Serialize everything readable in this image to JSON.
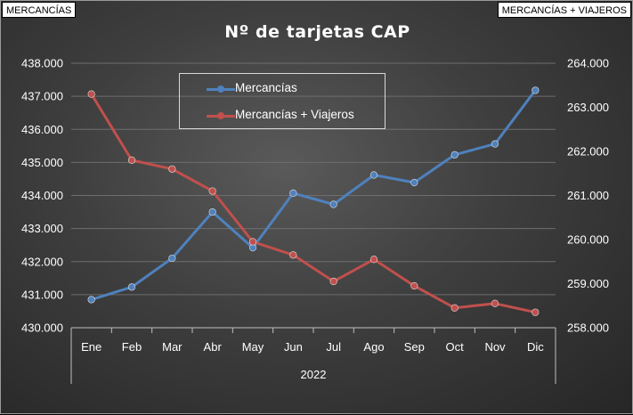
{
  "tags": {
    "left": "MERCANCÍAS",
    "right": "MERCANCÍAS + VIAJEROS"
  },
  "chart_data": {
    "type": "line",
    "title": "Nº de tarjetas  CAP",
    "categories": [
      "Ene",
      "Feb",
      "Mar",
      "Abr",
      "May",
      "Jun",
      "Jul",
      "Ago",
      "Sep",
      "Oct",
      "Nov",
      "Dic"
    ],
    "category_group": "2022",
    "series": [
      {
        "name": "Mercancías",
        "axis": "left",
        "color": "#4f81bd",
        "values": [
          430850,
          431230,
          432100,
          433500,
          432420,
          434070,
          433730,
          434620,
          434390,
          435230,
          435560,
          437180
        ]
      },
      {
        "name": "Mercancías + Viajeros",
        "axis": "right",
        "color": "#c0504d",
        "values": [
          263300,
          261800,
          261600,
          261100,
          259950,
          259650,
          259050,
          259550,
          258950,
          258450,
          258550,
          258350
        ]
      }
    ],
    "y_left": {
      "min": 430000,
      "max": 438000,
      "step": 1000,
      "tick_labels": [
        "430.000",
        "431.000",
        "432.000",
        "433.000",
        "434.000",
        "435.000",
        "436.000",
        "437.000",
        "438.000"
      ]
    },
    "y_right": {
      "min": 258000,
      "max": 264000,
      "step": 1000,
      "tick_labels": [
        "258.000",
        "259.000",
        "260.000",
        "261.000",
        "262.000",
        "263.000",
        "264.000"
      ]
    },
    "legend_position": "top-center",
    "grid": true
  }
}
